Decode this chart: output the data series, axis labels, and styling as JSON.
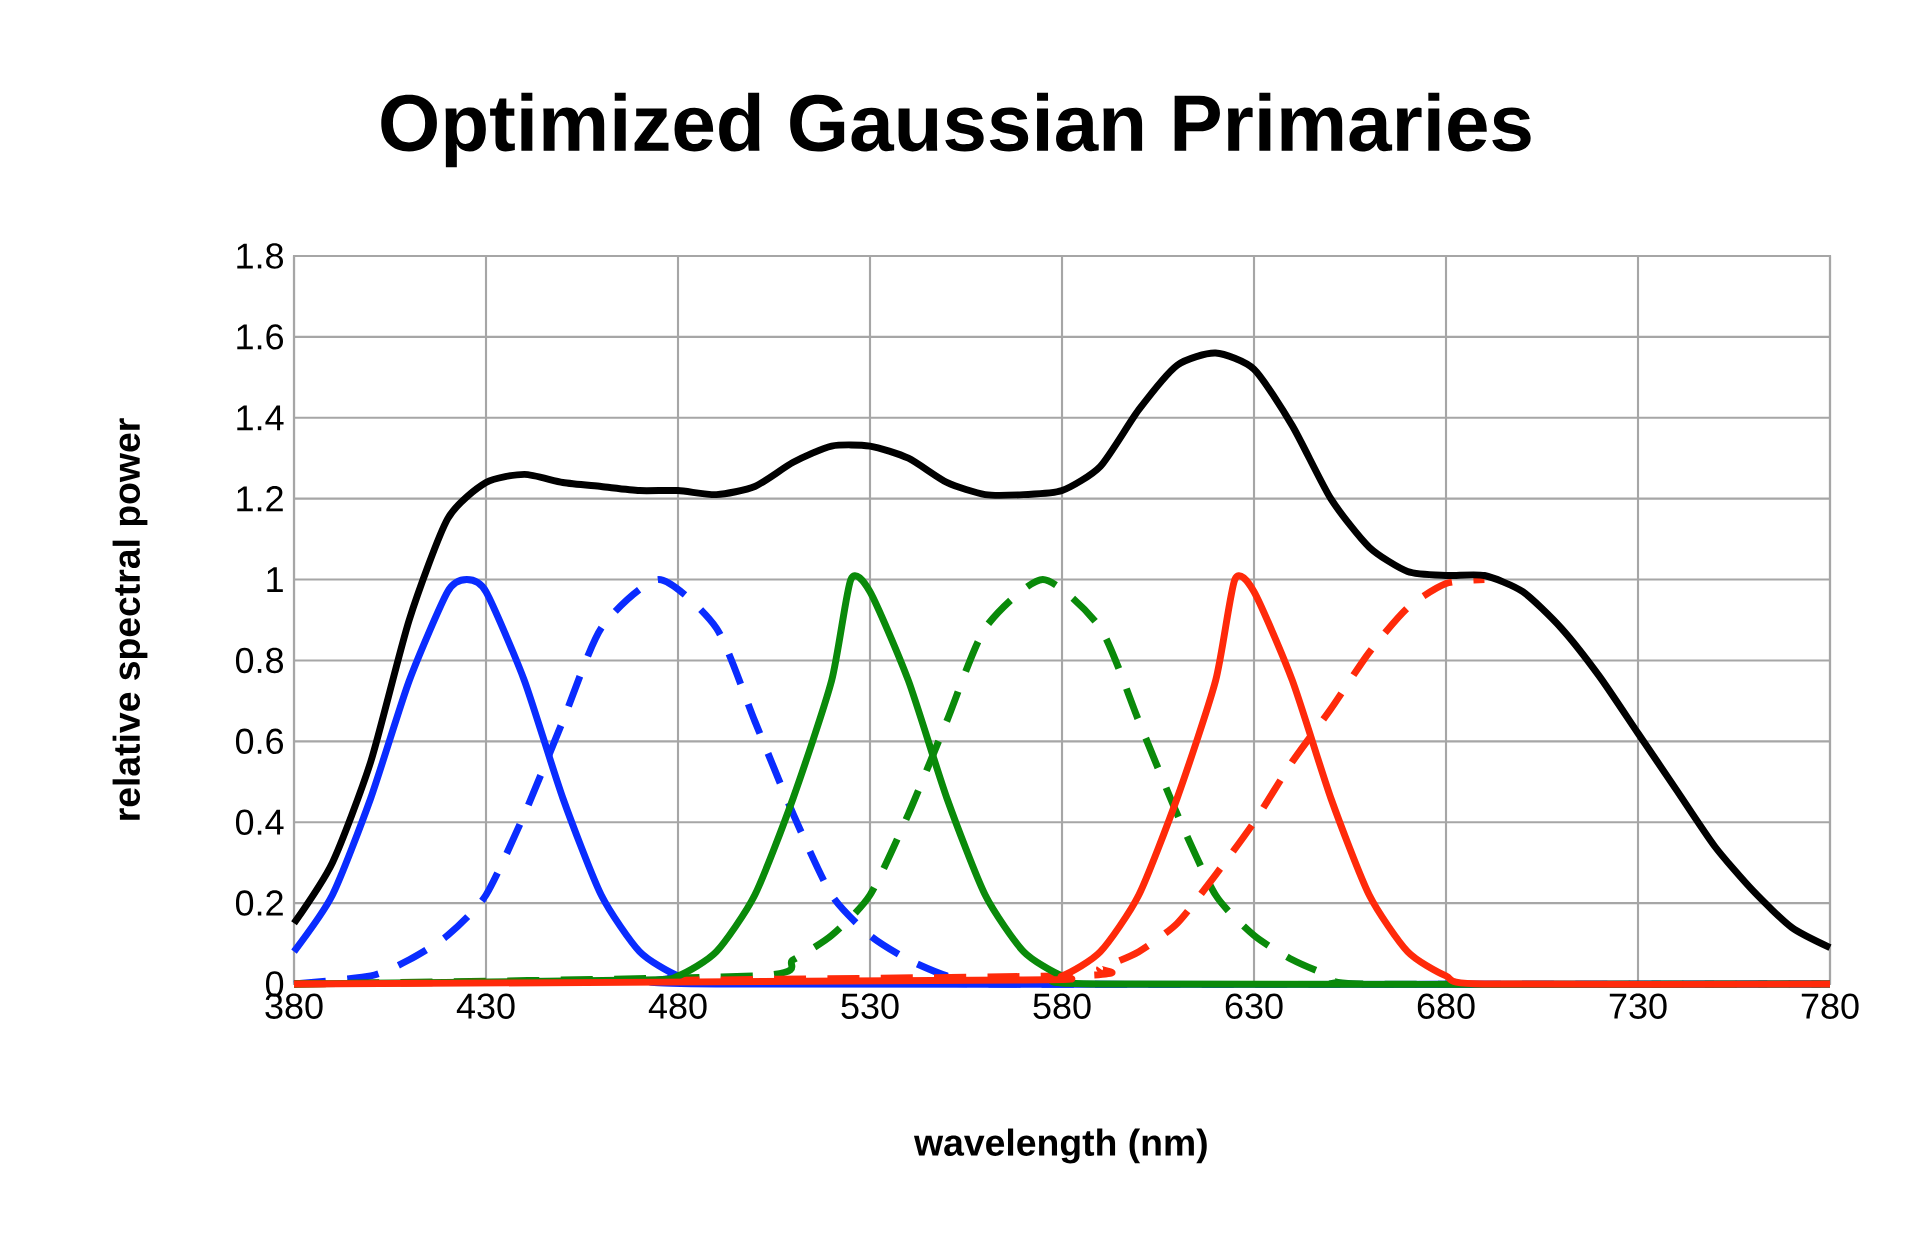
{
  "chart_data": {
    "type": "line",
    "title": "Optimized Gaussian Primaries",
    "xlabel": "wavelength (nm)",
    "ylabel": "relative spectral power",
    "xlim": [
      380,
      780
    ],
    "ylim": [
      0,
      1.8
    ],
    "xticks": [
      380,
      430,
      480,
      530,
      580,
      630,
      680,
      730,
      780
    ],
    "yticks": [
      0,
      0.2,
      0.4,
      0.6,
      0.8,
      1,
      1.2,
      1.4,
      1.6,
      1.8
    ],
    "grid": true,
    "marker": "none",
    "series": [
      {
        "color": "#0a2cff",
        "line_style": "dashed",
        "x": [
          380,
          400,
          410,
          420,
          430,
          440,
          450,
          460,
          475,
          490,
          500,
          510,
          520,
          530,
          540,
          550,
          560,
          780
        ],
        "values": [
          0,
          0.02,
          0.06,
          0.12,
          0.22,
          0.42,
          0.65,
          0.88,
          1.0,
          0.88,
          0.65,
          0.42,
          0.22,
          0.12,
          0.06,
          0.02,
          0,
          0
        ]
      },
      {
        "color": "#0a8a0a",
        "line_style": "dashed",
        "x": [
          380,
          500,
          510,
          520,
          530,
          540,
          550,
          560,
          575,
          590,
          600,
          610,
          620,
          630,
          640,
          650,
          660,
          780
        ],
        "values": [
          0,
          0.02,
          0.06,
          0.12,
          0.22,
          0.42,
          0.65,
          0.88,
          1.0,
          0.88,
          0.65,
          0.42,
          0.22,
          0.12,
          0.06,
          0.02,
          0,
          0
        ]
      },
      {
        "color": "#ff2a0a",
        "line_style": "dashed",
        "x": [
          380,
          580,
          590,
          600,
          610,
          620,
          630,
          640,
          650,
          660,
          670,
          680,
          690
        ],
        "values": [
          0,
          0.02,
          0.04,
          0.08,
          0.15,
          0.27,
          0.4,
          0.55,
          0.68,
          0.82,
          0.93,
          0.99,
          1.0
        ]
      },
      {
        "color": "#0a2cff",
        "line_style": "solid",
        "x": [
          380,
          390,
          400,
          410,
          420,
          425,
          430,
          440,
          450,
          460,
          470,
          480,
          490,
          780
        ],
        "values": [
          0.08,
          0.22,
          0.46,
          0.75,
          0.97,
          1.0,
          0.97,
          0.75,
          0.46,
          0.22,
          0.08,
          0.02,
          0,
          0
        ]
      },
      {
        "color": "#0a8a0a",
        "line_style": "solid",
        "x": [
          380,
          470,
          480,
          490,
          500,
          510,
          520,
          525,
          530,
          540,
          550,
          560,
          570,
          580,
          590,
          780
        ],
        "values": [
          0,
          0.01,
          0.02,
          0.08,
          0.22,
          0.46,
          0.75,
          1.0,
          0.97,
          0.75,
          0.46,
          0.22,
          0.08,
          0.02,
          0,
          0
        ]
      },
      {
        "color": "#000000",
        "line_style": "solid",
        "x": [
          380,
          390,
          400,
          410,
          420,
          430,
          440,
          450,
          460,
          470,
          480,
          490,
          500,
          510,
          520,
          530,
          540,
          550,
          560,
          570,
          580,
          590,
          600,
          610,
          620,
          630,
          640,
          650,
          660,
          670,
          680,
          690,
          700,
          710,
          720,
          730,
          740,
          750,
          760,
          770,
          780
        ],
        "values": [
          0.15,
          0.3,
          0.55,
          0.9,
          1.15,
          1.24,
          1.26,
          1.24,
          1.23,
          1.22,
          1.22,
          1.21,
          1.23,
          1.29,
          1.33,
          1.33,
          1.3,
          1.24,
          1.21,
          1.21,
          1.22,
          1.28,
          1.42,
          1.53,
          1.56,
          1.52,
          1.38,
          1.2,
          1.08,
          1.02,
          1.01,
          1.01,
          0.97,
          0.88,
          0.76,
          0.62,
          0.48,
          0.34,
          0.23,
          0.14,
          0.09
        ]
      },
      {
        "color": "#ff2a0a",
        "line_style": "solid",
        "x": [
          380,
          570,
          580,
          590,
          600,
          610,
          620,
          625,
          630,
          640,
          650,
          660,
          670,
          680,
          690,
          780
        ],
        "values": [
          0,
          0.01,
          0.02,
          0.08,
          0.22,
          0.46,
          0.75,
          1.0,
          0.97,
          0.75,
          0.46,
          0.22,
          0.08,
          0.02,
          0,
          0
        ]
      }
    ]
  }
}
